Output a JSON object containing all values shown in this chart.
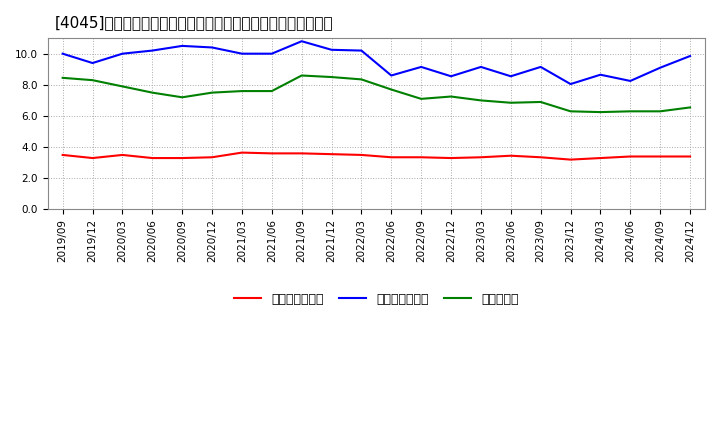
{
  "title": "[4045]  売上債権回転率、買入債務回転率、在庫回転率の推移",
  "x_labels": [
    "2019/09",
    "2019/12",
    "2020/03",
    "2020/06",
    "2020/09",
    "2020/12",
    "2021/03",
    "2021/06",
    "2021/09",
    "2021/12",
    "2022/03",
    "2022/06",
    "2022/09",
    "2022/12",
    "2023/03",
    "2023/06",
    "2023/09",
    "2023/12",
    "2024/03",
    "2024/06",
    "2024/09",
    "2024/12"
  ],
  "uriage": [
    3.5,
    3.3,
    3.5,
    3.3,
    3.3,
    3.35,
    3.65,
    3.6,
    3.6,
    3.55,
    3.5,
    3.35,
    3.35,
    3.3,
    3.35,
    3.45,
    3.35,
    3.2,
    3.3,
    3.4,
    3.4,
    3.4
  ],
  "kaiire": [
    10.0,
    9.4,
    10.0,
    10.2,
    10.5,
    10.4,
    10.0,
    10.0,
    10.8,
    10.25,
    10.2,
    8.6,
    9.15,
    8.55,
    9.15,
    8.55,
    9.15,
    8.05,
    8.65,
    8.25,
    9.1,
    9.85
  ],
  "zaiko": [
    8.45,
    8.3,
    7.9,
    7.5,
    7.2,
    7.5,
    7.6,
    7.6,
    8.6,
    8.5,
    8.35,
    7.7,
    7.1,
    7.25,
    7.0,
    6.85,
    6.9,
    6.3,
    6.25,
    6.3,
    6.3,
    6.55
  ],
  "color_red": "#ff0000",
  "color_blue": "#0000ff",
  "color_green": "#008000",
  "legend_uriage": "売上債権回転率",
  "legend_kaiire": "買入債務回転率",
  "legend_zaiko": "在庫回転率",
  "title_str": "[4045]　売上債権回転率、買入債務回転率、在庫回転率の推移",
  "ylim": [
    0.0,
    11.0
  ],
  "yticks": [
    0.0,
    2.0,
    4.0,
    6.0,
    8.0,
    10.0
  ],
  "background_color": "#ffffff",
  "grid_color": "#aaaaaa",
  "title_fontsize": 11,
  "legend_fontsize": 9,
  "tick_fontsize": 7.5,
  "linewidth": 1.5
}
